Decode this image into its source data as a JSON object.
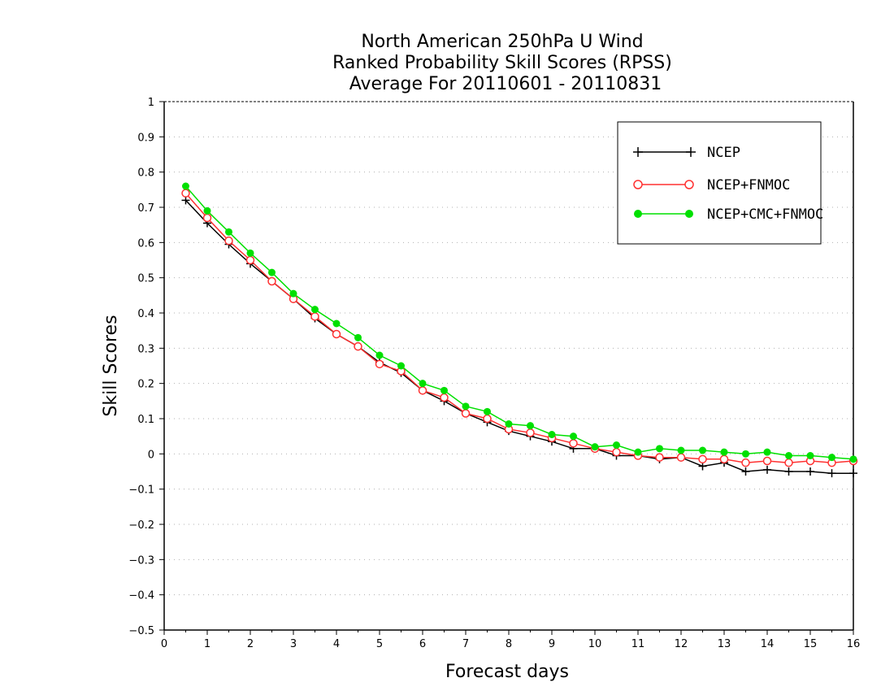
{
  "chart_data": {
    "type": "line",
    "title": [
      "North American 250hPa U Wind",
      "Ranked Probability Skill Scores (RPSS)",
      "Average For 20110601 - 20110831"
    ],
    "xlabel": "Forecast days",
    "ylabel": "Skill Scores",
    "xlim": [
      0,
      16
    ],
    "ylim": [
      -0.5,
      1
    ],
    "xticks": [
      "0",
      "1",
      "2",
      "3",
      "4",
      "5",
      "6",
      "7",
      "8",
      "9",
      "10",
      "11",
      "12",
      "13",
      "14",
      "15",
      "16"
    ],
    "yticks": [
      "1",
      "0.9",
      "0.8",
      "0.7",
      "0.6",
      "0.5",
      "0.4",
      "0.3",
      "0.2",
      "0.1",
      "0",
      "−0.1",
      "−0.2",
      "−0.3",
      "−0.4",
      "−0.5"
    ],
    "ytick_values": [
      1,
      0.9,
      0.8,
      0.7,
      0.6,
      0.5,
      0.4,
      0.3,
      0.2,
      0.1,
      0,
      -0.1,
      -0.2,
      -0.3,
      -0.4,
      -0.5
    ],
    "grid": true,
    "legend_position": "top-right",
    "x": [
      0.5,
      1,
      1.5,
      2,
      2.5,
      3,
      3.5,
      4,
      4.5,
      5,
      5.5,
      6,
      6.5,
      7,
      7.5,
      8,
      8.5,
      9,
      9.5,
      10,
      10.5,
      11,
      11.5,
      12,
      12.5,
      13,
      13.5,
      14,
      14.5,
      15,
      15.5,
      16
    ],
    "series": [
      {
        "name": "NCEP",
        "color": "#000000",
        "marker": "plus",
        "values": [
          0.72,
          0.655,
          0.595,
          0.54,
          0.49,
          0.44,
          0.385,
          0.34,
          0.305,
          0.26,
          0.23,
          0.18,
          0.15,
          0.115,
          0.09,
          0.065,
          0.05,
          0.035,
          0.015,
          0.015,
          -0.005,
          -0.005,
          -0.015,
          -0.01,
          -0.035,
          -0.025,
          -0.05,
          -0.045,
          -0.05,
          -0.05,
          -0.055,
          -0.055
        ]
      },
      {
        "name": "NCEP+FNMOC",
        "color": "#ff3030",
        "marker": "open-circle",
        "values": [
          0.74,
          0.67,
          0.605,
          0.55,
          0.49,
          0.44,
          0.39,
          0.34,
          0.305,
          0.255,
          0.235,
          0.18,
          0.16,
          0.115,
          0.1,
          0.07,
          0.06,
          0.045,
          0.03,
          0.015,
          0.005,
          -0.005,
          -0.01,
          -0.01,
          -0.015,
          -0.015,
          -0.025,
          -0.02,
          -0.025,
          -0.02,
          -0.025,
          -0.02
        ]
      },
      {
        "name": "NCEP+CMC+FNMOC",
        "color": "#00e000",
        "marker": "filled-circle",
        "values": [
          0.76,
          0.69,
          0.63,
          0.57,
          0.515,
          0.455,
          0.41,
          0.37,
          0.33,
          0.28,
          0.25,
          0.2,
          0.18,
          0.135,
          0.12,
          0.085,
          0.08,
          0.055,
          0.05,
          0.02,
          0.025,
          0.005,
          0.015,
          0.01,
          0.01,
          0.005,
          0,
          0.005,
          -0.005,
          -0.005,
          -0.01,
          -0.015
        ]
      }
    ]
  }
}
